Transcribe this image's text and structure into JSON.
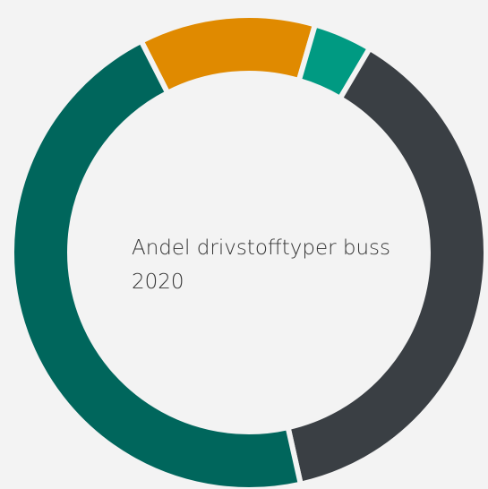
{
  "chart_data": {
    "type": "donut",
    "title": "Andel drivstofftyper buss 2020",
    "series": [
      {
        "color": "#e08a00",
        "values": [
          12
        ]
      },
      {
        "color": "#009a82",
        "values": [
          4
        ]
      },
      {
        "color": "#3a3f44",
        "values": [
          38
        ]
      },
      {
        "color": "#00665c",
        "values": [
          46
        ]
      }
    ]
  }
}
